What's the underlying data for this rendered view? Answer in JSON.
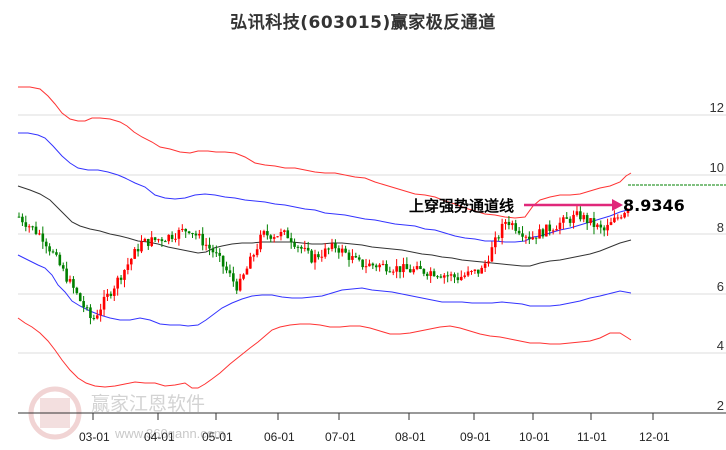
{
  "title": "弘讯科技(603015)赢家极反通道",
  "annotation": {
    "label": "上穿强势通道线",
    "value": "8.9346",
    "arrow_color": "#e0287a"
  },
  "watermark": {
    "brand": "赢家江恩软件",
    "url": "www.360gann.com",
    "seal_chars": [
      "江",
      "赢",
      "恩",
      "家"
    ]
  },
  "colors": {
    "up": "#ff0000",
    "down": "#008000",
    "outer_band": "#ff3333",
    "inner_band": "#3333ff",
    "mid_line": "#333333",
    "grid": "#dddddd",
    "ref_line": "#008000"
  },
  "chart_data": {
    "type": "candlestick",
    "title": "弘讯科技(603015)赢家极反通道",
    "xlabel": "",
    "ylabel": "",
    "ylim": [
      2,
      13
    ],
    "y_ticks": [
      2,
      4,
      6,
      8,
      10,
      12
    ],
    "x_ticks": [
      "03-01",
      "04-01",
      "05-01",
      "06-01",
      "07-01",
      "08-01",
      "09-01",
      "10-01",
      "11-01",
      "12-01"
    ],
    "grid": true,
    "legend": "none",
    "reference_line": {
      "value": 9.65,
      "style": "dashed",
      "color": "#008000"
    },
    "annotations": [
      {
        "text": "上穿强势通道线",
        "value": 8.9346
      }
    ],
    "series": [
      {
        "name": "outer_upper",
        "color": "#ff3333",
        "x": [
          "02-01",
          "02-15",
          "03-01",
          "03-15",
          "04-01",
          "04-15",
          "05-01",
          "05-15",
          "06-01",
          "06-15",
          "07-01",
          "07-15",
          "08-01",
          "08-15",
          "09-01",
          "09-15",
          "10-01",
          "10-15",
          "11-01",
          "11-15",
          "11-25"
        ],
        "values": [
          12.9,
          12.8,
          12.0,
          11.9,
          11.5,
          10.9,
          10.8,
          10.85,
          10.6,
          10.5,
          10.4,
          10.25,
          10.15,
          10.0,
          9.85,
          9.5,
          9.05,
          9.15,
          9.4,
          9.75,
          10.1
        ]
      },
      {
        "name": "inner_upper",
        "color": "#3333ff",
        "x": [
          "02-01",
          "02-15",
          "03-01",
          "03-15",
          "04-01",
          "04-15",
          "05-01",
          "05-15",
          "06-01",
          "06-15",
          "07-01",
          "07-15",
          "08-01",
          "08-15",
          "09-01",
          "09-15",
          "10-01",
          "10-15",
          "11-01",
          "11-15",
          "11-25"
        ],
        "values": [
          11.3,
          11.1,
          10.5,
          10.2,
          9.6,
          9.5,
          9.4,
          9.35,
          9.25,
          9.1,
          9.0,
          8.9,
          8.75,
          8.5,
          8.3,
          8.05,
          7.65,
          7.9,
          8.2,
          8.6,
          8.9
        ]
      },
      {
        "name": "mid_line",
        "color": "#333333",
        "x": [
          "02-01",
          "02-15",
          "03-01",
          "03-15",
          "04-01",
          "04-15",
          "05-01",
          "05-15",
          "06-01",
          "06-15",
          "07-01",
          "07-15",
          "08-01",
          "08-15",
          "09-01",
          "09-15",
          "10-01",
          "10-15",
          "11-01",
          "11-15",
          "11-25"
        ],
        "values": [
          9.7,
          9.4,
          8.7,
          8.4,
          8.1,
          7.95,
          7.8,
          7.6,
          7.55,
          7.6,
          7.65,
          7.55,
          7.35,
          7.2,
          7.05,
          6.9,
          6.7,
          7.0,
          7.2,
          7.45,
          7.65
        ]
      },
      {
        "name": "inner_lower",
        "color": "#3333ff",
        "x": [
          "02-01",
          "02-15",
          "03-01",
          "03-15",
          "04-01",
          "04-15",
          "05-01",
          "05-15",
          "06-01",
          "06-15",
          "07-01",
          "07-15",
          "08-01",
          "08-15",
          "09-01",
          "09-15",
          "10-01",
          "10-15",
          "11-01",
          "11-15",
          "11-25"
        ],
        "values": [
          8.0,
          7.4,
          6.3,
          5.6,
          5.2,
          5.15,
          5.1,
          5.6,
          5.95,
          5.95,
          5.9,
          6.2,
          6.05,
          5.9,
          5.8,
          5.75,
          5.7,
          5.65,
          5.8,
          6.05,
          6.0
        ]
      },
      {
        "name": "outer_lower",
        "color": "#ff3333",
        "x": [
          "02-01",
          "02-15",
          "03-01",
          "03-15",
          "04-01",
          "04-15",
          "05-01",
          "05-15",
          "06-01",
          "06-15",
          "07-01",
          "07-15",
          "08-01",
          "08-15",
          "09-01",
          "09-15",
          "10-01",
          "10-15",
          "11-01",
          "11-15",
          "11-25"
        ],
        "values": [
          5.0,
          4.3,
          3.1,
          2.85,
          3.0,
          2.9,
          2.9,
          3.7,
          4.5,
          4.6,
          4.5,
          4.85,
          4.65,
          4.5,
          4.5,
          4.6,
          4.35,
          4.4,
          4.45,
          4.75,
          4.55
        ]
      },
      {
        "name": "close_price",
        "color": "#000000",
        "x": [
          "02-01",
          "02-10",
          "02-20",
          "03-01",
          "03-10",
          "03-20",
          "04-01",
          "04-10",
          "04-20",
          "05-01",
          "05-15",
          "06-01",
          "06-15",
          "07-01",
          "07-15",
          "08-01",
          "08-15",
          "09-01",
          "09-15",
          "09-25",
          "10-01",
          "10-15",
          "11-01",
          "11-15",
          "11-20",
          "11-25"
        ],
        "values": [
          8.6,
          7.9,
          6.5,
          5.1,
          6.4,
          7.7,
          7.9,
          8.2,
          7.4,
          6.2,
          8.0,
          8.0,
          7.2,
          7.6,
          7.0,
          6.95,
          6.8,
          6.75,
          6.55,
          6.8,
          8.5,
          7.9,
          8.3,
          8.65,
          8.1,
          8.93
        ]
      }
    ]
  }
}
